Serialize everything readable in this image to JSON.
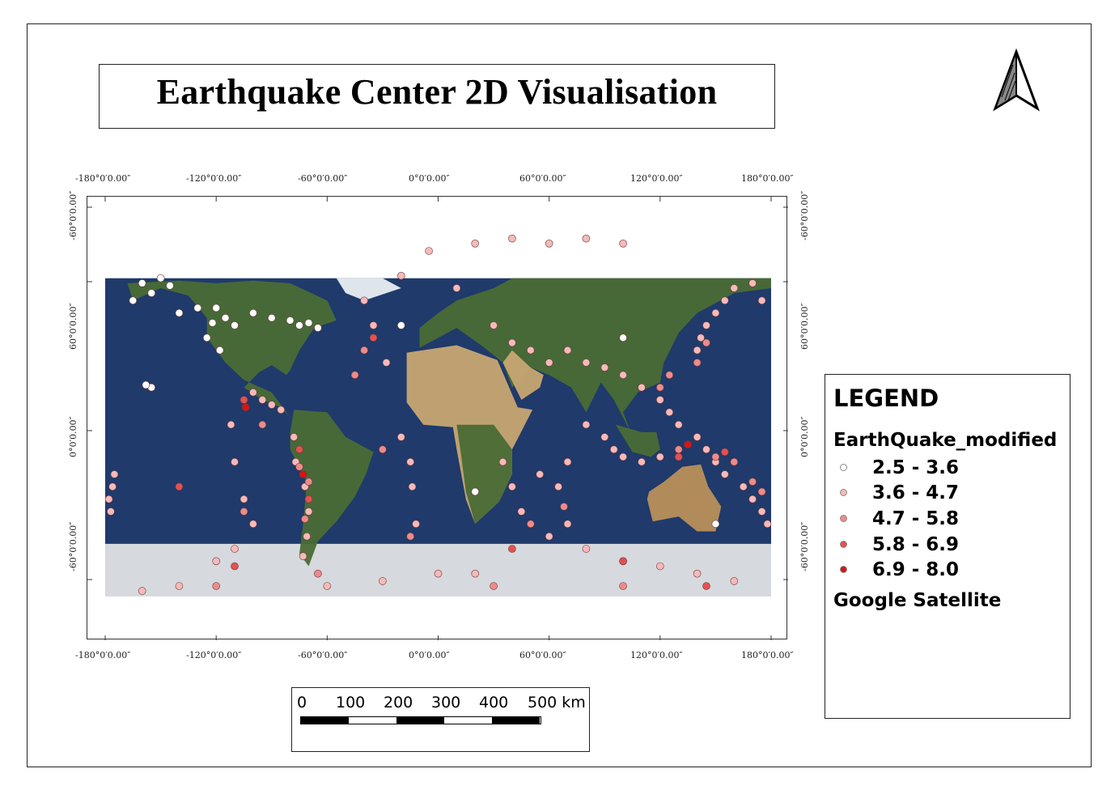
{
  "title": "Earthquake Center 2D Visualisation",
  "north_arrow": {
    "label": "N"
  },
  "map": {
    "basemap": "Google Satellite",
    "top_labels": [
      "-180°0′0.00″",
      "-120°0′0.00″",
      "-60°0′0.00″",
      "0°0′0.00″",
      "60°0′0.00″",
      "120°0′0.00″",
      "180°0′0.00″"
    ],
    "bottom_labels": [
      "-180°0′0.00″",
      "-120°0′0.00″",
      "-60°0′0.00″",
      "0°0′0.00″",
      "60°0′0.00″",
      "120°0′0.00″",
      "180°0′0.00″"
    ],
    "left_labels": [
      "-60°0′0.00″",
      "60°0′0.00″",
      "0°0′0.00″",
      "-60°0′0.00″"
    ],
    "right_labels": [
      "-60°0′0.00″",
      "60°0′0.00″",
      "0°0′0.00″",
      "-60°0′0.00″"
    ],
    "colors": {
      "ocean": "#1f3a6b",
      "land": "#4a6b35",
      "ice": "#d6d9dd",
      "desert": "#c8a672"
    }
  },
  "legend": {
    "title": "LEGEND",
    "layer_name": "EarthQuake_modified",
    "classes": [
      {
        "label": "2.5 - 3.6",
        "color": "#ffffff"
      },
      {
        "label": "3.6 - 4.7",
        "color": "#f7b9b9"
      },
      {
        "label": "4.7 - 5.8",
        "color": "#ef8a8a"
      },
      {
        "label": "5.8 - 6.9",
        "color": "#e55050"
      },
      {
        "label": "6.9 - 8.0",
        "color": "#d81414"
      }
    ],
    "basemap_label": "Google Satellite"
  },
  "scale_bar": {
    "labels": [
      "0",
      "100",
      "200",
      "300",
      "400",
      "500 km"
    ]
  },
  "chart_data": {
    "type": "scatter",
    "title": "Earthquake Center 2D Visualisation",
    "xlabel": "",
    "ylabel": "",
    "xlim": [
      -180,
      180
    ],
    "ylim": [
      -90,
      90
    ],
    "series": [
      {
        "name": "2.5 - 3.6",
        "color": "#ffffff",
        "points": [
          [
            -160,
            62
          ],
          [
            -150,
            64
          ],
          [
            -145,
            61
          ],
          [
            -155,
            58
          ],
          [
            -165,
            55
          ],
          [
            -120,
            52
          ],
          [
            -115,
            48
          ],
          [
            -122,
            46
          ],
          [
            -110,
            45
          ],
          [
            -100,
            50
          ],
          [
            -90,
            48
          ],
          [
            -80,
            47
          ],
          [
            -75,
            45
          ],
          [
            -70,
            46
          ],
          [
            -65,
            44
          ],
          [
            -140,
            50
          ],
          [
            -130,
            52
          ],
          [
            -125,
            40
          ],
          [
            -118,
            35
          ],
          [
            -155,
            20
          ],
          [
            -158,
            21
          ],
          [
            20,
            -22
          ],
          [
            150,
            -35
          ],
          [
            100,
            40
          ],
          [
            -20,
            45
          ]
        ]
      },
      {
        "name": "3.6 - 4.7",
        "color": "#f7b9b9",
        "points": [
          [
            -175,
            -15
          ],
          [
            -176,
            -20
          ],
          [
            -178,
            -25
          ],
          [
            -177,
            -30
          ],
          [
            -100,
            18
          ],
          [
            -95,
            15
          ],
          [
            -90,
            13
          ],
          [
            -85,
            11
          ],
          [
            -78,
            0
          ],
          [
            -77,
            -10
          ],
          [
            -72,
            -20
          ],
          [
            -70,
            -30
          ],
          [
            -71,
            -40
          ],
          [
            -73,
            -48
          ],
          [
            -60,
            -60
          ],
          [
            -30,
            -58
          ],
          [
            -15,
            -10
          ],
          [
            -14,
            -20
          ],
          [
            -12,
            -35
          ],
          [
            -20,
            0
          ],
          [
            -28,
            30
          ],
          [
            -35,
            45
          ],
          [
            -40,
            55
          ],
          [
            -20,
            65
          ],
          [
            10,
            60
          ],
          [
            30,
            45
          ],
          [
            40,
            38
          ],
          [
            50,
            35
          ],
          [
            60,
            30
          ],
          [
            70,
            35
          ],
          [
            80,
            30
          ],
          [
            90,
            28
          ],
          [
            100,
            25
          ],
          [
            110,
            20
          ],
          [
            120,
            15
          ],
          [
            125,
            10
          ],
          [
            130,
            5
          ],
          [
            140,
            0
          ],
          [
            145,
            -5
          ],
          [
            150,
            -10
          ],
          [
            155,
            -15
          ],
          [
            165,
            -20
          ],
          [
            170,
            -25
          ],
          [
            175,
            -30
          ],
          [
            178,
            -35
          ],
          [
            140,
            35
          ],
          [
            142,
            40
          ],
          [
            145,
            45
          ],
          [
            150,
            50
          ],
          [
            155,
            55
          ],
          [
            160,
            60
          ],
          [
            170,
            62
          ],
          [
            175,
            55
          ],
          [
            60,
            -40
          ],
          [
            70,
            -35
          ],
          [
            80,
            -45
          ],
          [
            100,
            -50
          ],
          [
            120,
            -52
          ],
          [
            140,
            -55
          ],
          [
            160,
            -58
          ],
          [
            -120,
            -50
          ],
          [
            -110,
            -45
          ],
          [
            -100,
            -35
          ],
          [
            -105,
            -25
          ],
          [
            -110,
            -10
          ],
          [
            -112,
            5
          ],
          [
            40,
            -20
          ],
          [
            35,
            -10
          ],
          [
            45,
            -30
          ],
          [
            55,
            -15
          ],
          [
            65,
            -20
          ],
          [
            70,
            -10
          ],
          [
            80,
            5
          ],
          [
            90,
            0
          ],
          [
            95,
            -5
          ],
          [
            100,
            -8
          ],
          [
            110,
            -10
          ],
          [
            120,
            -8
          ],
          [
            -140,
            -60
          ],
          [
            -160,
            -62
          ],
          [
            0,
            -55
          ],
          [
            20,
            -55
          ],
          [
            -5,
            75
          ],
          [
            20,
            78
          ],
          [
            40,
            80
          ],
          [
            60,
            78
          ],
          [
            80,
            80
          ],
          [
            100,
            78
          ]
        ]
      },
      {
        "name": "4.7 - 5.8",
        "color": "#ef8a8a",
        "points": [
          [
            -70,
            -18
          ],
          [
            -72,
            -33
          ],
          [
            -75,
            -12
          ],
          [
            -65,
            -55
          ],
          [
            -40,
            35
          ],
          [
            -45,
            25
          ],
          [
            -30,
            -5
          ],
          [
            -15,
            -40
          ],
          [
            130,
            -5
          ],
          [
            150,
            -8
          ],
          [
            160,
            -10
          ],
          [
            170,
            -18
          ],
          [
            175,
            -22
          ],
          [
            120,
            20
          ],
          [
            125,
            25
          ],
          [
            140,
            30
          ],
          [
            145,
            38
          ],
          [
            -105,
            -30
          ],
          [
            -95,
            5
          ],
          [
            50,
            -35
          ],
          [
            68,
            -28
          ],
          [
            30,
            -60
          ],
          [
            -120,
            -60
          ],
          [
            100,
            -60
          ]
        ]
      },
      {
        "name": "5.8 - 6.9",
        "color": "#e55050",
        "points": [
          [
            -105,
            15
          ],
          [
            -75,
            -5
          ],
          [
            -70,
            -25
          ],
          [
            -35,
            40
          ],
          [
            130,
            -8
          ],
          [
            155,
            -6
          ],
          [
            40,
            -45
          ],
          [
            100,
            -50
          ],
          [
            -110,
            -52
          ],
          [
            -140,
            -20
          ],
          [
            145,
            -60
          ]
        ]
      },
      {
        "name": "6.9 - 8.0",
        "color": "#d81414",
        "points": [
          [
            -104,
            12
          ],
          [
            -73,
            -15
          ],
          [
            135,
            -3
          ]
        ]
      }
    ]
  }
}
